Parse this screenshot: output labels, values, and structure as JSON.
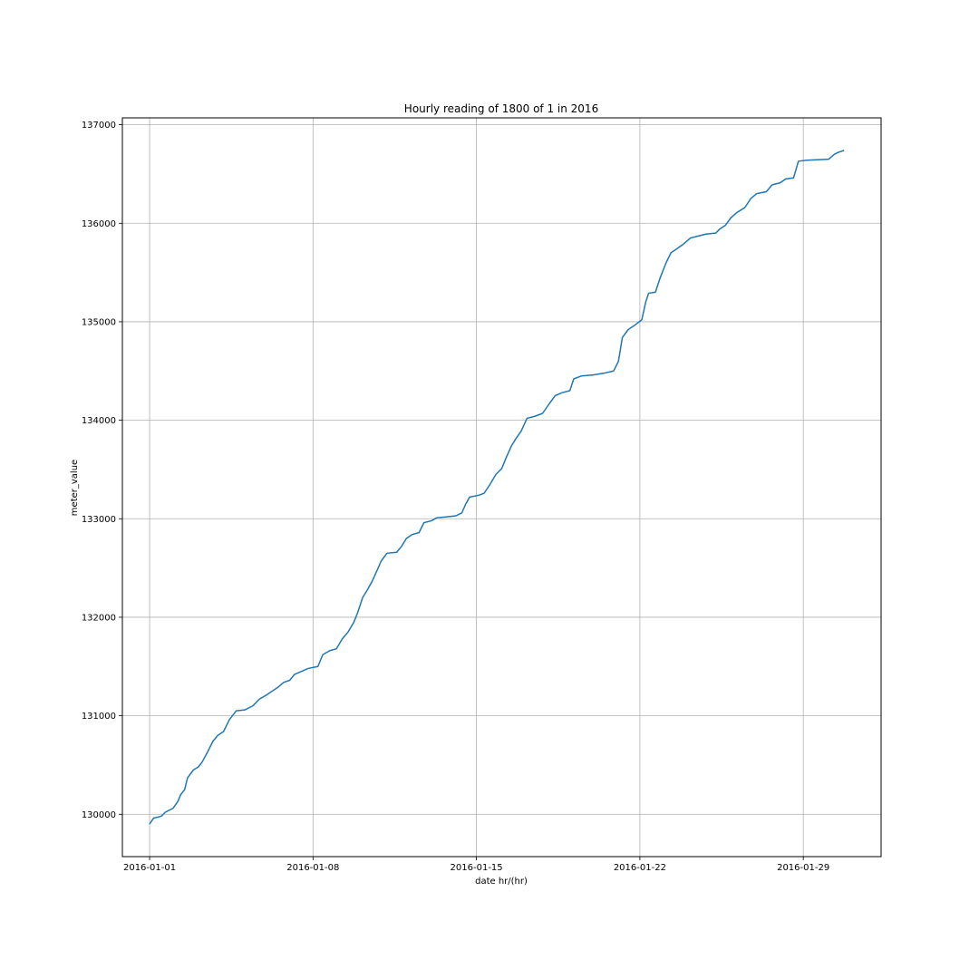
{
  "chart_data": {
    "type": "line",
    "title": "Hourly reading of 1800 of 1 in 2016",
    "xlabel": "date hr/(hr)",
    "ylabel": "meter_value",
    "x_type": "date",
    "xlim": [
      "2015-12-30 20:00",
      "2016-02-01 08:00"
    ],
    "ylim": [
      129570,
      137070
    ],
    "x_ticks": [
      "2016-01-01",
      "2016-01-08",
      "2016-01-15",
      "2016-01-22",
      "2016-01-29"
    ],
    "y_ticks": [
      130000,
      131000,
      132000,
      133000,
      134000,
      135000,
      136000,
      137000
    ],
    "grid": true,
    "line_color": "#1f77b4",
    "series": [
      {
        "points": [
          [
            "2016-01-01 00:00",
            129900
          ],
          [
            "2016-01-01 04:00",
            129960
          ],
          [
            "2016-01-01 12:00",
            129980
          ],
          [
            "2016-01-01 16:00",
            130020
          ],
          [
            "2016-01-02 00:00",
            130060
          ],
          [
            "2016-01-02 05:00",
            130130
          ],
          [
            "2016-01-02 08:00",
            130200
          ],
          [
            "2016-01-02 12:00",
            130250
          ],
          [
            "2016-01-02 15:00",
            130370
          ],
          [
            "2016-01-02 21:00",
            130450
          ],
          [
            "2016-01-03 02:00",
            130480
          ],
          [
            "2016-01-03 06:00",
            130530
          ],
          [
            "2016-01-03 12:00",
            130640
          ],
          [
            "2016-01-03 17:00",
            130740
          ],
          [
            "2016-01-03 22:00",
            130800
          ],
          [
            "2016-01-04 04:00",
            130840
          ],
          [
            "2016-01-04 10:00",
            130960
          ],
          [
            "2016-01-04 17:00",
            131050
          ],
          [
            "2016-01-05 02:00",
            131060
          ],
          [
            "2016-01-05 10:00",
            131100
          ],
          [
            "2016-01-05 17:00",
            131170
          ],
          [
            "2016-01-06 00:00",
            131210
          ],
          [
            "2016-01-06 06:00",
            131250
          ],
          [
            "2016-01-06 12:00",
            131290
          ],
          [
            "2016-01-06 18:00",
            131340
          ],
          [
            "2016-01-07 00:00",
            131360
          ],
          [
            "2016-01-07 05:00",
            131420
          ],
          [
            "2016-01-07 12:00",
            131450
          ],
          [
            "2016-01-07 19:00",
            131480
          ],
          [
            "2016-01-08 05:00",
            131500
          ],
          [
            "2016-01-08 10:00",
            131620
          ],
          [
            "2016-01-08 17:00",
            131660
          ],
          [
            "2016-01-09 00:00",
            131680
          ],
          [
            "2016-01-09 06:00",
            131780
          ],
          [
            "2016-01-09 12:00",
            131850
          ],
          [
            "2016-01-09 18:00",
            131950
          ],
          [
            "2016-01-09 22:00",
            132050
          ],
          [
            "2016-01-10 03:00",
            132200
          ],
          [
            "2016-01-10 08:00",
            132280
          ],
          [
            "2016-01-10 13:00",
            132370
          ],
          [
            "2016-01-10 18:00",
            132480
          ],
          [
            "2016-01-10 22:00",
            132570
          ],
          [
            "2016-01-11 04:00",
            132650
          ],
          [
            "2016-01-11 14:00",
            132660
          ],
          [
            "2016-01-11 19:00",
            132720
          ],
          [
            "2016-01-12 00:00",
            132800
          ],
          [
            "2016-01-12 06:00",
            132840
          ],
          [
            "2016-01-12 13:00",
            132860
          ],
          [
            "2016-01-12 18:00",
            132960
          ],
          [
            "2016-01-13 02:00",
            132980
          ],
          [
            "2016-01-13 07:00",
            133010
          ],
          [
            "2016-01-13 18:00",
            133020
          ],
          [
            "2016-01-14 03:00",
            133030
          ],
          [
            "2016-01-14 09:00",
            133060
          ],
          [
            "2016-01-14 13:00",
            133150
          ],
          [
            "2016-01-14 17:00",
            133220
          ],
          [
            "2016-01-15 03:00",
            133240
          ],
          [
            "2016-01-15 08:00",
            133260
          ],
          [
            "2016-01-15 14:00",
            133350
          ],
          [
            "2016-01-15 20:00",
            133450
          ],
          [
            "2016-01-16 02:00",
            133510
          ],
          [
            "2016-01-16 07:00",
            133630
          ],
          [
            "2016-01-16 12:00",
            133740
          ],
          [
            "2016-01-16 17:00",
            133820
          ],
          [
            "2016-01-16 22:00",
            133890
          ],
          [
            "2016-01-17 04:00",
            134020
          ],
          [
            "2016-01-17 12:00",
            134040
          ],
          [
            "2016-01-17 20:00",
            134070
          ],
          [
            "2016-01-18 03:00",
            134170
          ],
          [
            "2016-01-18 09:00",
            134250
          ],
          [
            "2016-01-18 16:00",
            134280
          ],
          [
            "2016-01-19 00:00",
            134300
          ],
          [
            "2016-01-19 04:00",
            134420
          ],
          [
            "2016-01-19 12:00",
            134450
          ],
          [
            "2016-01-20 00:00",
            134460
          ],
          [
            "2016-01-20 12:00",
            134480
          ],
          [
            "2016-01-20 21:00",
            134500
          ],
          [
            "2016-01-21 02:00",
            134600
          ],
          [
            "2016-01-21 06:00",
            134840
          ],
          [
            "2016-01-21 12:00",
            134920
          ],
          [
            "2016-01-21 18:00",
            134960
          ],
          [
            "2016-01-22 02:00",
            135020
          ],
          [
            "2016-01-22 06:00",
            135200
          ],
          [
            "2016-01-22 09:00",
            135290
          ],
          [
            "2016-01-22 16:00",
            135300
          ],
          [
            "2016-01-22 21:00",
            135450
          ],
          [
            "2016-01-23 03:00",
            135600
          ],
          [
            "2016-01-23 08:00",
            135700
          ],
          [
            "2016-01-23 14:00",
            135740
          ],
          [
            "2016-01-23 21:00",
            135790
          ],
          [
            "2016-01-24 04:00",
            135850
          ],
          [
            "2016-01-24 12:00",
            135870
          ],
          [
            "2016-01-24 20:00",
            135890
          ],
          [
            "2016-01-25 06:00",
            135900
          ],
          [
            "2016-01-25 10:00",
            135940
          ],
          [
            "2016-01-25 16:00",
            135980
          ],
          [
            "2016-01-25 22:00",
            136060
          ],
          [
            "2016-01-26 04:00",
            136110
          ],
          [
            "2016-01-26 12:00",
            136160
          ],
          [
            "2016-01-26 18:00",
            136250
          ],
          [
            "2016-01-27 00:00",
            136300
          ],
          [
            "2016-01-27 10:00",
            136320
          ],
          [
            "2016-01-27 16:00",
            136390
          ],
          [
            "2016-01-28 00:00",
            136410
          ],
          [
            "2016-01-28 06:00",
            136450
          ],
          [
            "2016-01-28 14:00",
            136460
          ],
          [
            "2016-01-28 19:00",
            136630
          ],
          [
            "2016-01-29 04:00",
            136640
          ],
          [
            "2016-01-30 02:00",
            136650
          ],
          [
            "2016-01-30 08:00",
            136700
          ],
          [
            "2016-01-30 12:00",
            136720
          ],
          [
            "2016-01-30 18:00",
            136740
          ]
        ]
      }
    ]
  }
}
